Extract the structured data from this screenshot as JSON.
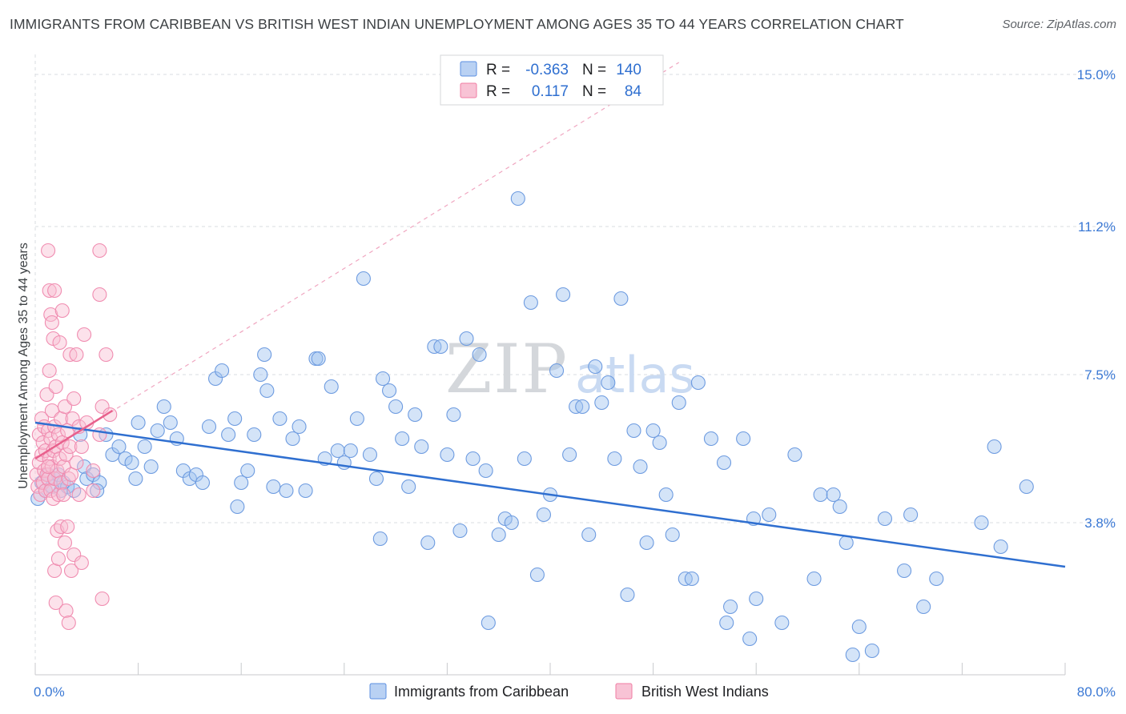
{
  "title": "IMMIGRANTS FROM CARIBBEAN VS BRITISH WEST INDIAN UNEMPLOYMENT AMONG AGES 35 TO 44 YEARS CORRELATION CHART",
  "source": "Source: ZipAtlas.com",
  "watermark": {
    "zip": "ZIP",
    "atlas": "atlas"
  },
  "colors": {
    "blue": "#5b8fe0",
    "blue_line": "#2f6fd0",
    "pink": "#f07ca3",
    "pink_line": "#e8608c",
    "grid": "#dadce0"
  },
  "legend_stats": [
    {
      "r_label": "R =",
      "r_value": "-0.363",
      "n_label": "N =",
      "n_value": "140"
    },
    {
      "r_label": "R =",
      "r_value": "0.117",
      "n_label": "N =",
      "n_value": "84"
    }
  ],
  "chart_data": {
    "type": "scatter",
    "title": "IMMIGRANTS FROM CARIBBEAN VS BRITISH WEST INDIAN UNEMPLOYMENT AMONG AGES 35 TO 44 YEARS CORRELATION CHART",
    "xlabel": "",
    "ylabel": "Unemployment Among Ages 35 to 44 years",
    "xlim": [
      0,
      80
    ],
    "ylim": [
      0,
      15.3
    ],
    "x_tick_labels": [
      {
        "value": 0,
        "label": "0.0%"
      },
      {
        "value": 80,
        "label": "80.0%"
      }
    ],
    "y_tick_labels": [
      {
        "value": 3.8,
        "label": "3.8%"
      },
      {
        "value": 7.5,
        "label": "7.5%"
      },
      {
        "value": 11.2,
        "label": "11.2%"
      },
      {
        "value": 15.0,
        "label": "15.0%"
      }
    ],
    "grid": true,
    "legend_position": "bottom-center",
    "series": [
      {
        "name": "Immigrants from Caribbean",
        "color": "#5b8fe0",
        "R": -0.363,
        "N": 140,
        "trend": {
          "x": [
            0,
            80
          ],
          "y": [
            6.3,
            2.7
          ]
        },
        "points": [
          [
            0.2,
            4.4
          ],
          [
            0.5,
            4.8
          ],
          [
            0.8,
            4.6
          ],
          [
            1.0,
            5.0
          ],
          [
            1.3,
            4.7
          ],
          [
            1.5,
            4.9
          ],
          [
            1.8,
            5.0
          ],
          [
            2.0,
            4.6
          ],
          [
            2.2,
            4.8
          ],
          [
            2.5,
            4.7
          ],
          [
            3.0,
            4.6
          ],
          [
            3.5,
            6.0
          ],
          [
            3.8,
            5.2
          ],
          [
            4.0,
            4.9
          ],
          [
            4.5,
            5.0
          ],
          [
            5.0,
            4.8
          ],
          [
            5.5,
            6.0
          ],
          [
            4.8,
            4.6
          ],
          [
            6.0,
            5.5
          ],
          [
            6.5,
            5.7
          ],
          [
            7.0,
            5.4
          ],
          [
            7.5,
            5.3
          ],
          [
            8.0,
            6.3
          ],
          [
            8.5,
            5.7
          ],
          [
            7.8,
            4.9
          ],
          [
            9.0,
            5.2
          ],
          [
            9.5,
            6.1
          ],
          [
            10.0,
            6.7
          ],
          [
            10.5,
            6.3
          ],
          [
            11.0,
            5.9
          ],
          [
            11.5,
            5.1
          ],
          [
            12.0,
            4.9
          ],
          [
            12.5,
            5.0
          ],
          [
            13.0,
            4.8
          ],
          [
            13.5,
            6.2
          ],
          [
            14.0,
            7.4
          ],
          [
            14.5,
            7.6
          ],
          [
            15.0,
            6.0
          ],
          [
            15.5,
            6.4
          ],
          [
            16.0,
            4.8
          ],
          [
            15.7,
            4.2
          ],
          [
            16.5,
            5.1
          ],
          [
            17.0,
            6.0
          ],
          [
            17.5,
            7.5
          ],
          [
            17.8,
            8.0
          ],
          [
            18.0,
            7.1
          ],
          [
            18.5,
            4.7
          ],
          [
            19.0,
            6.4
          ],
          [
            19.5,
            4.6
          ],
          [
            20.0,
            5.9
          ],
          [
            20.5,
            6.2
          ],
          [
            21.0,
            4.6
          ],
          [
            21.8,
            7.9
          ],
          [
            22.0,
            7.9
          ],
          [
            22.5,
            5.4
          ],
          [
            23.0,
            7.2
          ],
          [
            23.5,
            5.6
          ],
          [
            24.0,
            5.3
          ],
          [
            24.5,
            5.6
          ],
          [
            25.0,
            6.4
          ],
          [
            25.5,
            9.9
          ],
          [
            26.0,
            5.5
          ],
          [
            26.5,
            4.9
          ],
          [
            26.8,
            3.4
          ],
          [
            27.0,
            7.4
          ],
          [
            27.5,
            7.1
          ],
          [
            28.0,
            6.7
          ],
          [
            28.5,
            5.9
          ],
          [
            29.0,
            4.7
          ],
          [
            29.5,
            6.5
          ],
          [
            30.0,
            5.7
          ],
          [
            30.5,
            3.3
          ],
          [
            31.0,
            8.2
          ],
          [
            31.5,
            8.2
          ],
          [
            32.0,
            5.5
          ],
          [
            32.5,
            6.5
          ],
          [
            33.0,
            3.6
          ],
          [
            33.5,
            8.4
          ],
          [
            34.0,
            5.4
          ],
          [
            34.5,
            8.0
          ],
          [
            35.0,
            5.1
          ],
          [
            35.2,
            1.3
          ],
          [
            36.0,
            3.5
          ],
          [
            36.5,
            3.9
          ],
          [
            37.0,
            3.8
          ],
          [
            37.5,
            11.9
          ],
          [
            38.0,
            5.4
          ],
          [
            38.5,
            9.3
          ],
          [
            39.0,
            2.5
          ],
          [
            39.5,
            4.0
          ],
          [
            40.0,
            4.5
          ],
          [
            40.5,
            7.6
          ],
          [
            41.0,
            9.5
          ],
          [
            41.5,
            5.5
          ],
          [
            42.0,
            6.7
          ],
          [
            42.5,
            6.7
          ],
          [
            43.0,
            3.5
          ],
          [
            43.5,
            7.7
          ],
          [
            44.0,
            6.8
          ],
          [
            44.5,
            7.3
          ],
          [
            45.0,
            5.4
          ],
          [
            45.5,
            9.4
          ],
          [
            46.0,
            2.0
          ],
          [
            46.5,
            6.1
          ],
          [
            47.0,
            5.2
          ],
          [
            47.5,
            3.3
          ],
          [
            48.0,
            6.1
          ],
          [
            48.5,
            5.8
          ],
          [
            49.0,
            4.5
          ],
          [
            49.5,
            3.5
          ],
          [
            50.0,
            6.8
          ],
          [
            50.5,
            2.4
          ],
          [
            51.0,
            2.4
          ],
          [
            51.5,
            7.3
          ],
          [
            52.5,
            5.9
          ],
          [
            53.5,
            5.3
          ],
          [
            53.7,
            1.3
          ],
          [
            54.0,
            1.7
          ],
          [
            55.0,
            5.9
          ],
          [
            55.5,
            0.9
          ],
          [
            55.8,
            3.9
          ],
          [
            56.0,
            1.9
          ],
          [
            57.0,
            4.0
          ],
          [
            58.0,
            1.3
          ],
          [
            59.0,
            5.5
          ],
          [
            60.5,
            2.4
          ],
          [
            61.0,
            4.5
          ],
          [
            62.0,
            4.5
          ],
          [
            62.5,
            4.2
          ],
          [
            63.0,
            3.3
          ],
          [
            63.5,
            0.5
          ],
          [
            64.0,
            1.2
          ],
          [
            65.0,
            0.6
          ],
          [
            66.0,
            3.9
          ],
          [
            67.5,
            2.6
          ],
          [
            68.0,
            4.0
          ],
          [
            69.0,
            1.7
          ],
          [
            70.0,
            2.4
          ],
          [
            73.5,
            3.8
          ],
          [
            74.5,
            5.7
          ],
          [
            75.0,
            3.2
          ],
          [
            77.0,
            4.7
          ]
        ]
      },
      {
        "name": "British West Indians",
        "color": "#f07ca3",
        "R": 0.117,
        "N": 84,
        "trend": {
          "x": [
            0,
            6.0
          ],
          "y": [
            5.4,
            6.6
          ]
        },
        "trend_extended": {
          "x": [
            0,
            50
          ],
          "y": [
            5.4,
            15.3
          ]
        },
        "points": [
          [
            0.1,
            5.0
          ],
          [
            0.2,
            4.7
          ],
          [
            0.3,
            5.3
          ],
          [
            0.3,
            6.0
          ],
          [
            0.4,
            4.5
          ],
          [
            0.5,
            5.5
          ],
          [
            0.5,
            6.4
          ],
          [
            0.6,
            4.8
          ],
          [
            0.6,
            5.8
          ],
          [
            0.7,
            5.1
          ],
          [
            0.7,
            6.2
          ],
          [
            0.8,
            4.6
          ],
          [
            0.8,
            5.6
          ],
          [
            0.9,
            7.0
          ],
          [
            0.9,
            5.0
          ],
          [
            1.0,
            4.9
          ],
          [
            1.0,
            6.1
          ],
          [
            1.0,
            10.6
          ],
          [
            1.1,
            5.4
          ],
          [
            1.1,
            7.6
          ],
          [
            1.1,
            9.6
          ],
          [
            1.2,
            4.6
          ],
          [
            1.2,
            5.9
          ],
          [
            1.2,
            9.0
          ],
          [
            1.3,
            5.2
          ],
          [
            1.3,
            6.6
          ],
          [
            1.3,
            8.8
          ],
          [
            1.4,
            4.4
          ],
          [
            1.4,
            5.6
          ],
          [
            1.4,
            8.4
          ],
          [
            1.5,
            4.9
          ],
          [
            1.5,
            6.2
          ],
          [
            1.5,
            9.6
          ],
          [
            1.5,
            2.6
          ],
          [
            1.6,
            5.7
          ],
          [
            1.6,
            7.2
          ],
          [
            1.6,
            1.8
          ],
          [
            1.7,
            5.1
          ],
          [
            1.7,
            3.6
          ],
          [
            1.8,
            6.0
          ],
          [
            1.8,
            4.5
          ],
          [
            1.8,
            2.9
          ],
          [
            1.9,
            5.4
          ],
          [
            1.9,
            8.3
          ],
          [
            2.0,
            4.8
          ],
          [
            2.0,
            3.7
          ],
          [
            2.0,
            6.4
          ],
          [
            2.1,
            9.1
          ],
          [
            2.1,
            5.8
          ],
          [
            2.2,
            5.2
          ],
          [
            2.2,
            4.5
          ],
          [
            2.3,
            6.7
          ],
          [
            2.3,
            3.3
          ],
          [
            2.4,
            5.5
          ],
          [
            2.4,
            1.6
          ],
          [
            2.5,
            6.1
          ],
          [
            2.5,
            3.7
          ],
          [
            2.6,
            4.9
          ],
          [
            2.6,
            1.3
          ],
          [
            2.7,
            5.7
          ],
          [
            2.7,
            8.0
          ],
          [
            2.8,
            5.0
          ],
          [
            2.8,
            2.6
          ],
          [
            2.9,
            6.4
          ],
          [
            3.0,
            6.9
          ],
          [
            3.0,
            3.0
          ],
          [
            3.2,
            5.3
          ],
          [
            3.2,
            8.0
          ],
          [
            3.4,
            6.2
          ],
          [
            3.4,
            4.5
          ],
          [
            3.6,
            5.7
          ],
          [
            3.6,
            2.8
          ],
          [
            3.8,
            8.5
          ],
          [
            4.0,
            6.3
          ],
          [
            4.5,
            5.1
          ],
          [
            4.5,
            4.6
          ],
          [
            5.0,
            6.0
          ],
          [
            5.0,
            9.5
          ],
          [
            5.0,
            10.6
          ],
          [
            5.2,
            1.9
          ],
          [
            5.2,
            6.7
          ],
          [
            5.5,
            8.0
          ],
          [
            5.8,
            6.5
          ],
          [
            1.0,
            5.2
          ]
        ]
      }
    ]
  }
}
